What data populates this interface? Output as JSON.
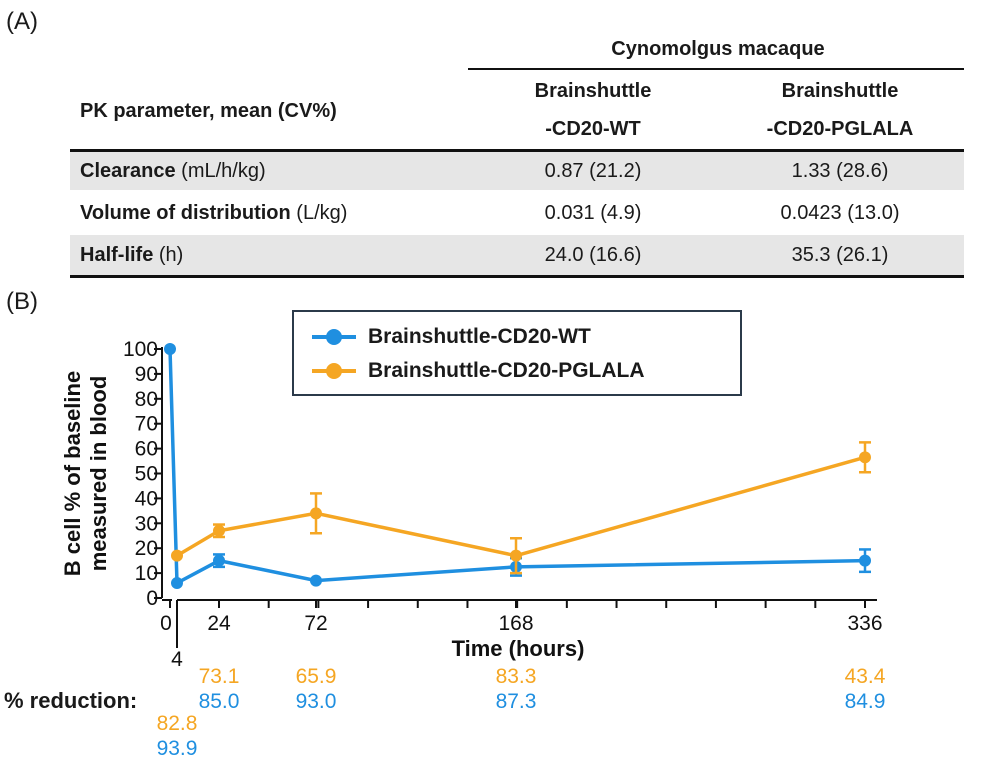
{
  "panels": {
    "a": "(A)",
    "b": "(B)"
  },
  "table": {
    "group_header": "Cynomolgus macaque",
    "param_header": "PK parameter, mean (CV%)",
    "col1": [
      "Brainshuttle",
      "-CD20-WT"
    ],
    "col2": [
      "Brainshuttle",
      "-CD20-PGLALA"
    ],
    "rows": [
      {
        "name": "Clearance",
        "unit": " (mL/h/kg)",
        "v1": "0.87 (21.2)",
        "v2": "1.33 (28.6)"
      },
      {
        "name": "Volume of distribution",
        "unit": " (L/kg)",
        "v1": "0.031 (4.9)",
        "v2": "0.0423 (13.0)"
      },
      {
        "name": "Half-life",
        "unit": " (h)",
        "v1": "24.0 (16.6)",
        "v2": "35.3 (26.1)"
      }
    ]
  },
  "colors": {
    "wt": "#1f8fe0",
    "pglala": "#f5a623",
    "axis": "#111111"
  },
  "chart_data": {
    "type": "line",
    "xlabel": "Time (hours)",
    "ylabel": [
      "B cell % of baseline",
      "measured in blood"
    ],
    "ylim": [
      0,
      100
    ],
    "yticks": [
      0,
      10,
      20,
      30,
      40,
      50,
      60,
      70,
      80,
      90,
      100
    ],
    "xticks": [
      0,
      4,
      24,
      72,
      168,
      336
    ],
    "x_axis_break": "0-4",
    "series": [
      {
        "name": "Brainshuttle-CD20-WT",
        "color": "#1f8fe0",
        "x": [
          0,
          4,
          24,
          72,
          168,
          336
        ],
        "y": [
          100,
          6,
          15,
          7,
          12.5,
          15
        ],
        "err": [
          0,
          0,
          2.5,
          0,
          3.5,
          4.5
        ]
      },
      {
        "name": "Brainshuttle-CD20-PGLALA",
        "color": "#f5a623",
        "x": [
          4,
          24,
          72,
          168,
          336
        ],
        "y": [
          17,
          27,
          34,
          17,
          56.5
        ],
        "err": [
          0,
          2.5,
          8,
          7,
          6
        ]
      }
    ],
    "legend": "top-center"
  },
  "reduction": {
    "label": "% reduction:",
    "pglala": [
      {
        "x": 4,
        "value": "82.8"
      },
      {
        "x": 24,
        "value": "73.1"
      },
      {
        "x": 72,
        "value": "65.9"
      },
      {
        "x": 168,
        "value": "83.3"
      },
      {
        "x": 336,
        "value": "43.4"
      }
    ],
    "wt": [
      {
        "x": 4,
        "value": "93.9"
      },
      {
        "x": 24,
        "value": "85.0"
      },
      {
        "x": 72,
        "value": "93.0"
      },
      {
        "x": 168,
        "value": "87.3"
      },
      {
        "x": 336,
        "value": "84.9"
      }
    ]
  }
}
